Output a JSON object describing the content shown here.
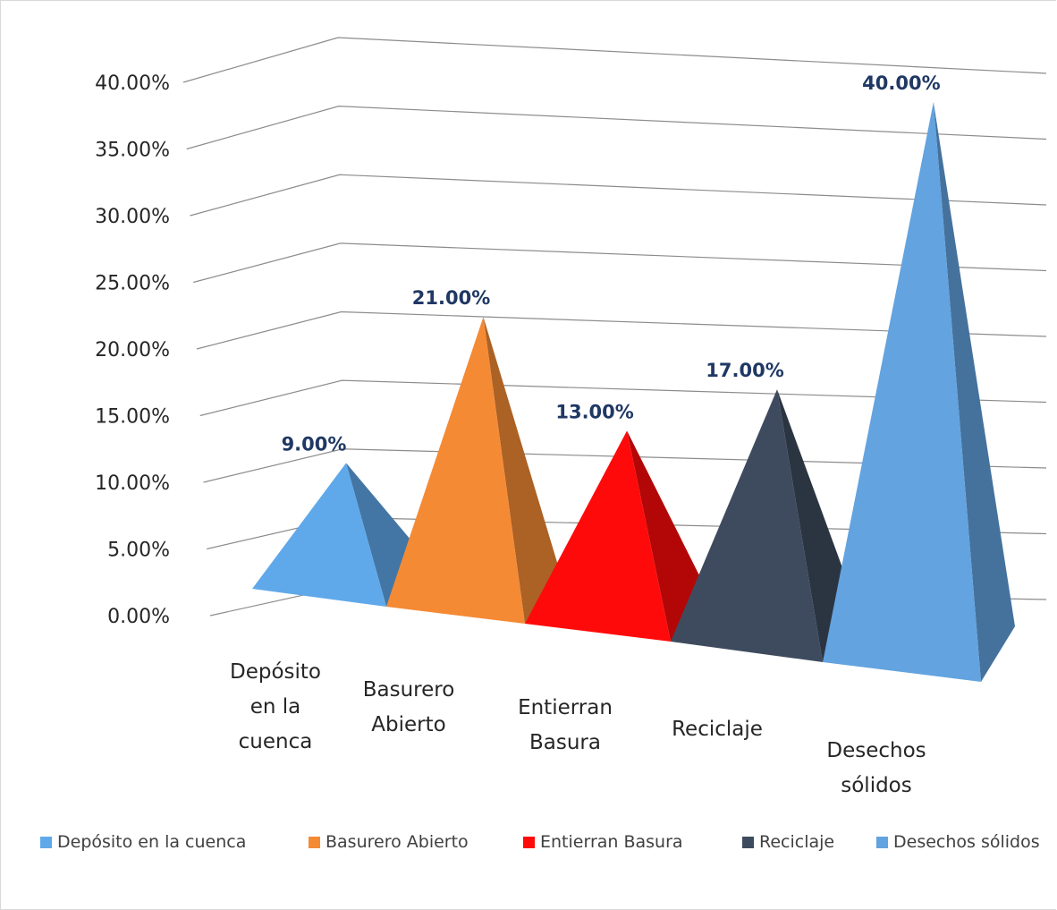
{
  "chart_data": {
    "type": "pyramid3d",
    "categories": [
      "Depósito en la cuenca",
      "Basurero Abierto",
      "Entierran Basura",
      "Reciclaje",
      "Desechos sólidos"
    ],
    "values": [
      9,
      21,
      13,
      17,
      40
    ],
    "value_labels": [
      "9.00%",
      "21.00%",
      "13.00%",
      "17.00%",
      "40.00%"
    ],
    "colors": [
      "#5fa9ea",
      "#f58a35",
      "#ff0a0a",
      "#3e4b5e",
      "#62a3e0"
    ],
    "ylim": [
      0,
      40
    ],
    "yticks": [
      {
        "value": 0,
        "label": "0.00%"
      },
      {
        "value": 5,
        "label": "5.00%"
      },
      {
        "value": 10,
        "label": "10.00%"
      },
      {
        "value": 15,
        "label": "15.00%"
      },
      {
        "value": 20,
        "label": "20.00%"
      },
      {
        "value": 25,
        "label": "25.00%"
      },
      {
        "value": 30,
        "label": "30.00%"
      },
      {
        "value": 35,
        "label": "35.00%"
      },
      {
        "value": 40,
        "label": "40.00%"
      }
    ],
    "grid": true,
    "legend": "bottom"
  }
}
